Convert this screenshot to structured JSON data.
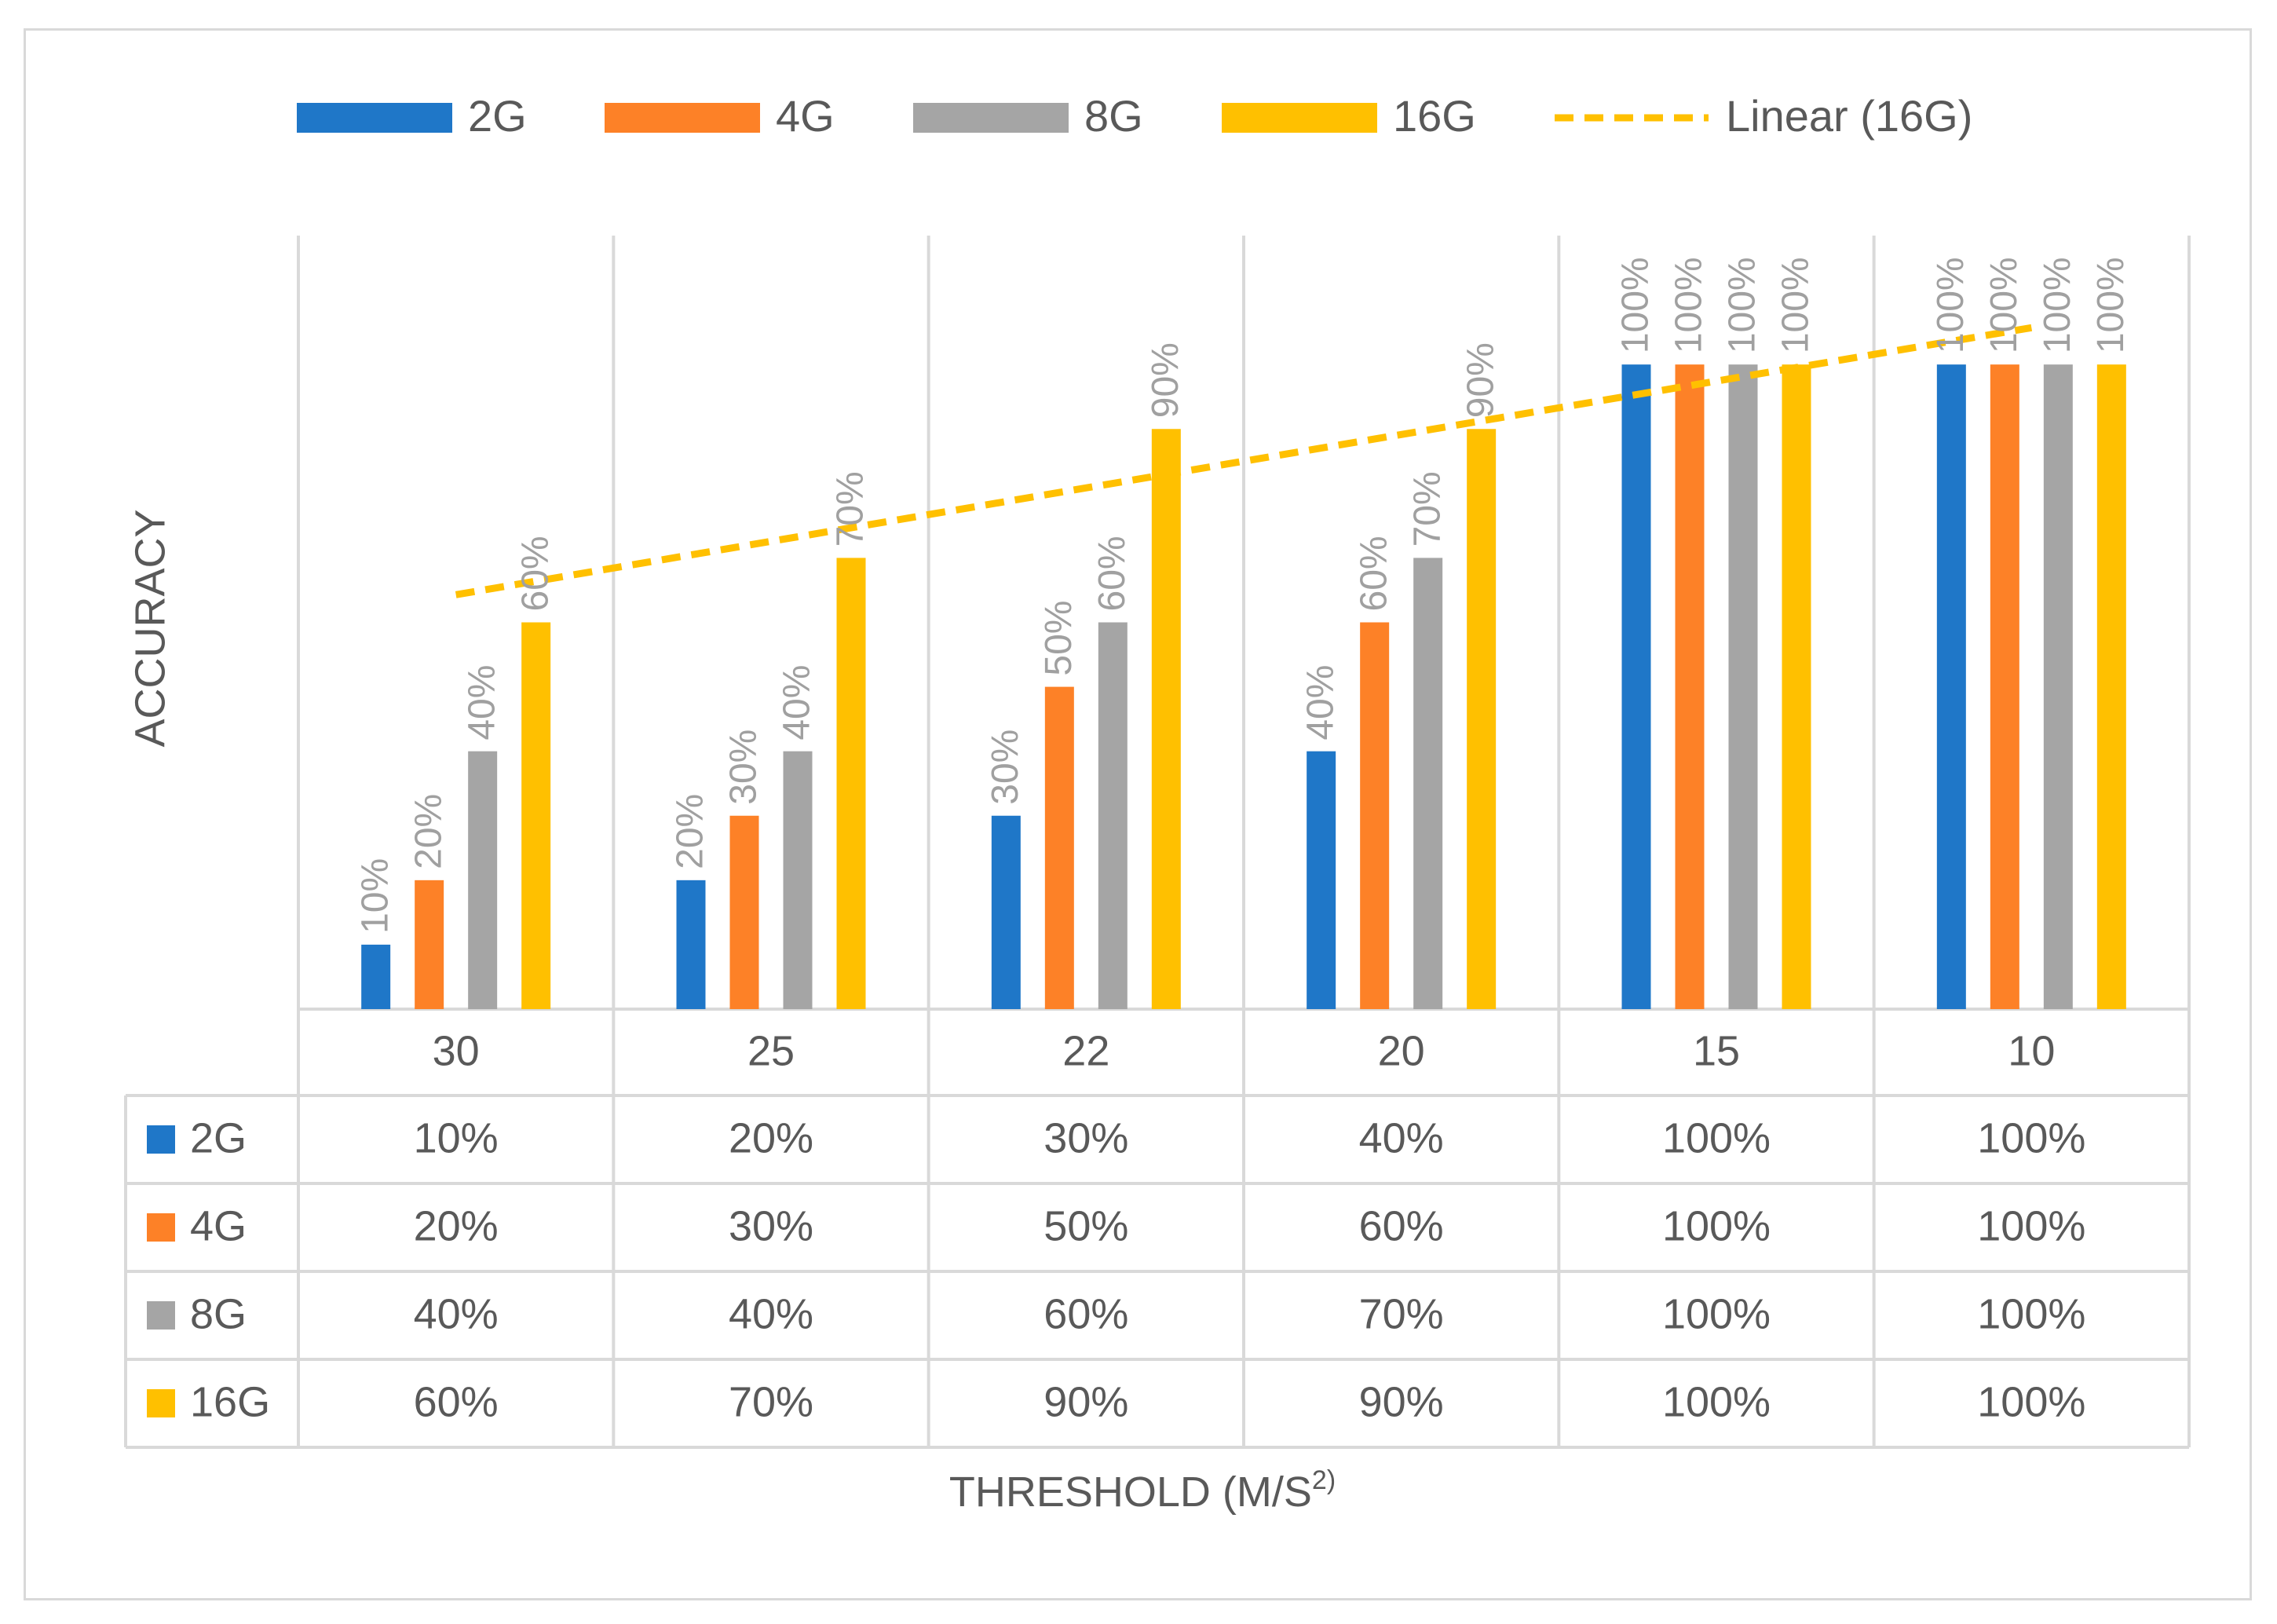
{
  "chart_data": {
    "type": "bar",
    "categories": [
      "30",
      "25",
      "22",
      "20",
      "15",
      "10"
    ],
    "series": [
      {
        "name": "2G",
        "color": "#1f77c8",
        "values": [
          10,
          20,
          30,
          40,
          100,
          100
        ],
        "labels": [
          "10%",
          "20%",
          "30%",
          "40%",
          "100%",
          "100%"
        ]
      },
      {
        "name": "4G",
        "color": "#fd8127",
        "values": [
          20,
          30,
          50,
          60,
          100,
          100
        ],
        "labels": [
          "20%",
          "30%",
          "50%",
          "60%",
          "100%",
          "100%"
        ]
      },
      {
        "name": "8G",
        "color": "#a5a5a5",
        "values": [
          40,
          40,
          60,
          70,
          100,
          100
        ],
        "labels": [
          "40%",
          "40%",
          "60%",
          "70%",
          "100%",
          "100%"
        ]
      },
      {
        "name": "16G",
        "color": "#ffc000",
        "values": [
          60,
          70,
          90,
          90,
          100,
          100
        ],
        "labels": [
          "60%",
          "70%",
          "90%",
          "90%",
          "100%",
          "100%"
        ]
      }
    ],
    "trendline": {
      "name": "Linear (16G)",
      "series": "16G",
      "color": "#ffc000"
    },
    "ylabel": "ACCURACY",
    "xlabel": "THRESHOLD (M/S",
    "xlabel_sup": "2)",
    "ylim": [
      0,
      120
    ],
    "legend_position": "top",
    "data_table": true
  }
}
